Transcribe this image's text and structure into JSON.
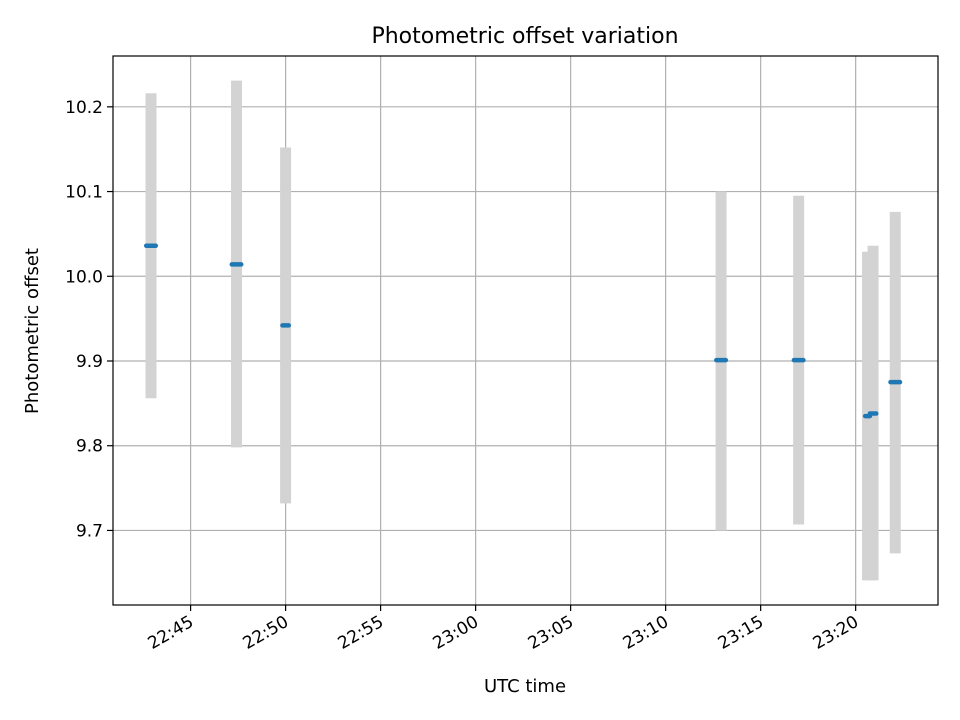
{
  "chart_data": {
    "type": "scatter",
    "title": "Photometric offset variation",
    "xlabel": "UTC time",
    "ylabel": "Photometric offset",
    "xlim": [
      "22:40:55",
      "23:24:20"
    ],
    "ylim": [
      9.612,
      10.26
    ],
    "x_ticks": [
      "22:45",
      "22:50",
      "22:55",
      "23:00",
      "23:05",
      "23:10",
      "23:15",
      "23:20"
    ],
    "y_ticks": [
      "9.7",
      "9.8",
      "9.9",
      "10.0",
      "10.1",
      "10.2"
    ],
    "grid": true,
    "legend": "none",
    "colors": {
      "points": "#1f77b4",
      "error_bars": "#d3d3d3",
      "grid": "#b0b0b0"
    },
    "points": [
      {
        "t": "22:42:40",
        "t2": "22:43:10",
        "y": 10.036,
        "err_low": 9.856,
        "err_high": 10.216
      },
      {
        "t": "22:47:10",
        "t2": "22:47:40",
        "y": 10.014,
        "err_low": 9.798,
        "err_high": 10.231
      },
      {
        "t": "22:49:50",
        "t2": "22:50:10",
        "y": 9.942,
        "err_low": 9.732,
        "err_high": 10.152
      },
      {
        "t": "23:12:40",
        "t2": "23:13:10",
        "y": 9.901,
        "err_low": 9.7,
        "err_high": 10.1
      },
      {
        "t": "23:16:45",
        "t2": "23:17:15",
        "y": 9.901,
        "err_low": 9.707,
        "err_high": 10.095
      },
      {
        "t": "23:20:30",
        "t2": "23:20:45",
        "y": 9.835,
        "err_low": 9.641,
        "err_high": 10.029
      },
      {
        "t": "23:20:45",
        "t2": "23:21:05",
        "y": 9.838,
        "err_low": 9.641,
        "err_high": 10.036
      },
      {
        "t": "23:21:50",
        "t2": "23:22:20",
        "y": 9.875,
        "err_low": 9.673,
        "err_high": 10.076
      }
    ]
  }
}
